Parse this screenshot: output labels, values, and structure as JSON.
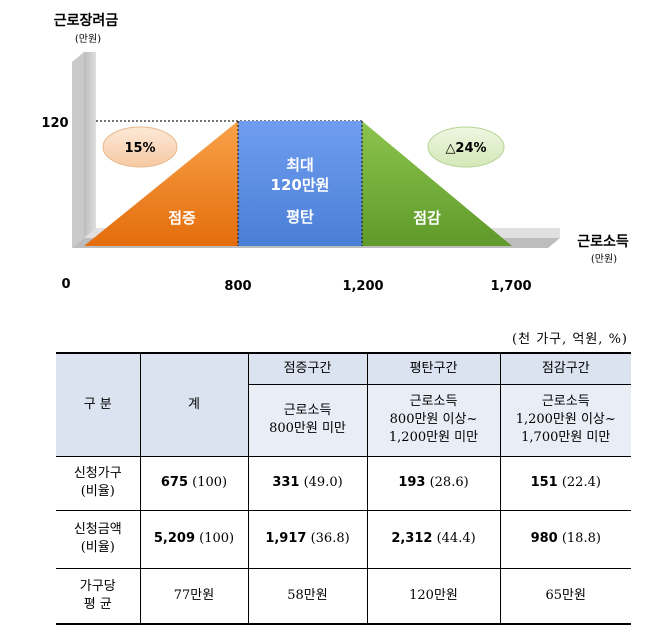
{
  "chart_data": {
    "type": "area",
    "ylabel": "근로장려금",
    "ylabel_unit": "(만원)",
    "xlabel": "근로소득",
    "xlabel_unit": "(만원)",
    "y_ticks": [
      "120"
    ],
    "x_ticks": [
      "0",
      "800",
      "1,200",
      "1,700"
    ],
    "x": [
      0,
      800,
      1200,
      1700
    ],
    "y": [
      0,
      120,
      120,
      0
    ],
    "xlim": [
      0,
      1700
    ],
    "ylim": [
      0,
      120
    ],
    "segments": [
      {
        "name": "점증",
        "x_start": 0,
        "x_end": 800,
        "y_start": 0,
        "y_end": 120,
        "color": "#f07f1a",
        "badge": "15%"
      },
      {
        "name": "평탄",
        "x_start": 800,
        "x_end": 1200,
        "y_start": 120,
        "y_end": 120,
        "color": "#5b8ee0",
        "label_top": "최대",
        "label_mid": "120만원"
      },
      {
        "name": "점감",
        "x_start": 1200,
        "x_end": 1700,
        "y_start": 120,
        "y_end": 0,
        "color": "#7bb43a",
        "badge": "△24%"
      }
    ]
  },
  "table": {
    "unit_note": "(천 가구, 억원, %)",
    "header": {
      "category": "구 분",
      "total": "계",
      "phases": [
        {
          "name": "점증구간",
          "range_line1": "근로소득",
          "range_line2": "800만원 미만",
          "range_line3": ""
        },
        {
          "name": "평탄구간",
          "range_line1": "근로소득",
          "range_line2": "800만원 이상~",
          "range_line3": "1,200만원 미만"
        },
        {
          "name": "점감구간",
          "range_line1": "근로소득",
          "range_line2": "1,200만원 이상~",
          "range_line3": "1,700만원 미만"
        }
      ]
    },
    "rows": [
      {
        "label_line1": "신청가구",
        "label_line2": "(비율)",
        "cells": [
          {
            "value": "675",
            "pct": "(100)"
          },
          {
            "value": "331",
            "pct": "(49.0)"
          },
          {
            "value": "193",
            "pct": "(28.6)"
          },
          {
            "value": "151",
            "pct": "(22.4)"
          }
        ]
      },
      {
        "label_line1": "신청금액",
        "label_line2": "(비율)",
        "cells": [
          {
            "value": "5,209",
            "pct": "(100)"
          },
          {
            "value": "1,917",
            "pct": "(36.8)"
          },
          {
            "value": "2,312",
            "pct": "(44.4)"
          },
          {
            "value": "980",
            "pct": "(18.8)"
          }
        ]
      }
    ],
    "avg_row": {
      "label_line1": "가구당",
      "label_line2": "평 균",
      "cells": [
        "77만원",
        "58만원",
        "120만원",
        "65만원"
      ]
    }
  }
}
